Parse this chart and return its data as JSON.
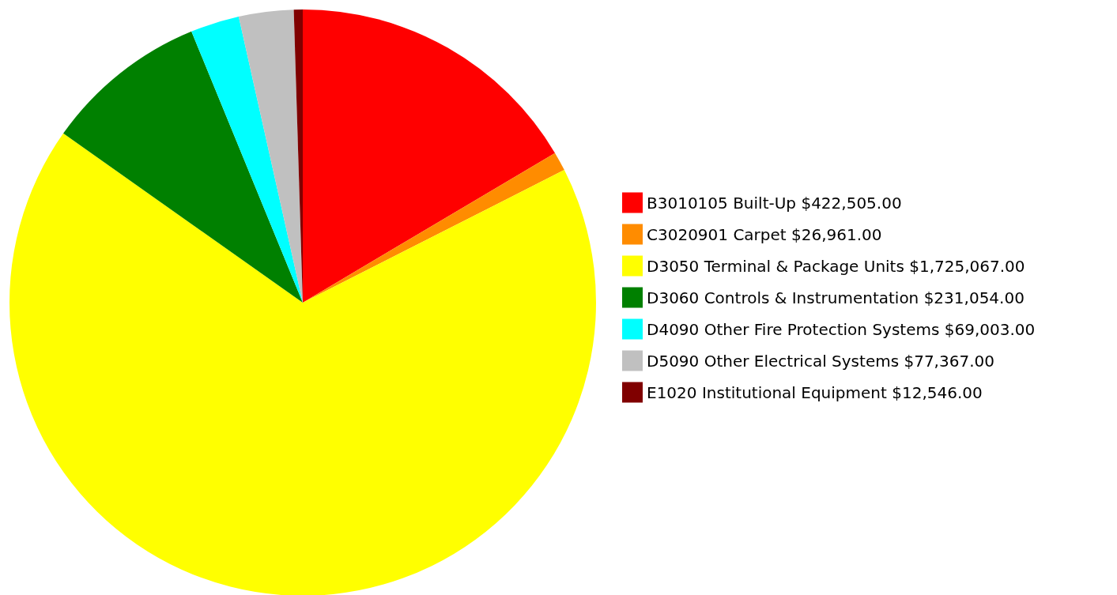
{
  "chart_data": {
    "type": "pie",
    "categories": [
      "B3010105 Built-Up",
      "C3020901 Carpet",
      "D3050 Terminal & Package Units",
      "D3060 Controls & Instrumentation",
      "D4090 Other Fire Protection Systems",
      "D5090 Other Electrical Systems",
      "E1020 Institutional Equipment"
    ],
    "values": [
      422505,
      26961,
      1725067,
      231054,
      69003,
      77367,
      12546
    ],
    "value_labels": [
      "$422,505.00",
      "$26,961.00",
      "$1,725,067.00",
      "$231,054.00",
      "$69,003.00",
      "$77,367.00",
      "$12,546.00"
    ],
    "colors": [
      "#ff0000",
      "#ff8c00",
      "#ffff00",
      "#008000",
      "#00ffff",
      "#c0c0c0",
      "#800000"
    ],
    "legend": "right"
  }
}
